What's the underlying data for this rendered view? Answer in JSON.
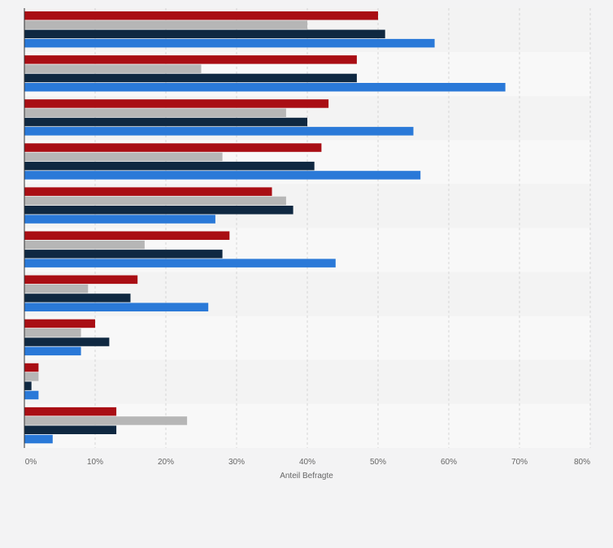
{
  "chart_data": {
    "type": "bar",
    "orientation": "horizontal",
    "title": "",
    "xlabel": "Anteil Befragte",
    "ylabel": "",
    "xlim": [
      0,
      80
    ],
    "x_ticks": [
      "0%",
      "10%",
      "20%",
      "30%",
      "40%",
      "50%",
      "60%",
      "70%",
      "80%"
    ],
    "grid": true,
    "legend": "none",
    "categories": [
      "",
      "",
      "",
      "",
      "",
      "",
      "",
      "",
      "",
      ""
    ],
    "series": [
      {
        "color": "#a90e14",
        "values": [
          50,
          47,
          43,
          42,
          35,
          29,
          16,
          10,
          2,
          13
        ]
      },
      {
        "color": "#b6b6b6",
        "values": [
          40,
          25,
          37,
          28,
          37,
          17,
          9,
          8,
          2,
          23
        ]
      },
      {
        "color": "#0f2841",
        "values": [
          51,
          47,
          40,
          41,
          38,
          28,
          15,
          12,
          1,
          13
        ]
      },
      {
        "color": "#2a79d8",
        "values": [
          58,
          68,
          55,
          56,
          27,
          44,
          26,
          8,
          2,
          4
        ]
      }
    ]
  }
}
